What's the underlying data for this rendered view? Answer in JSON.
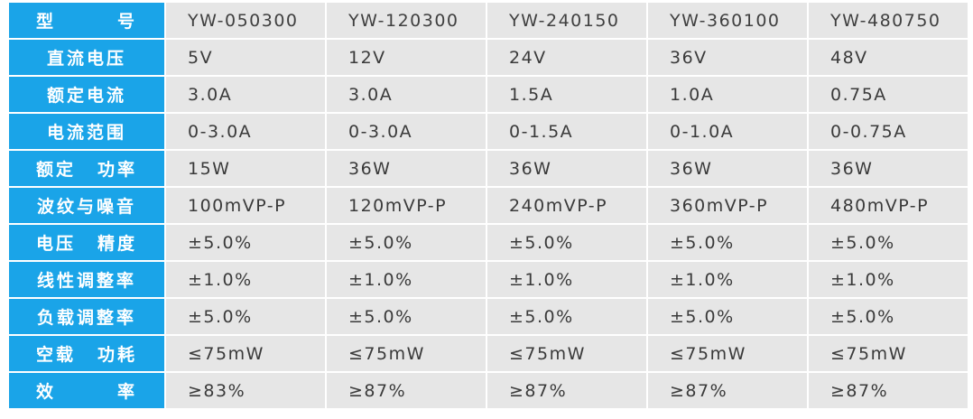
{
  "table": {
    "columns": [
      "YW-050300",
      "YW-120300",
      "YW-240150",
      "YW-360100",
      "YW-480750"
    ],
    "header_label": [
      "型",
      "号"
    ],
    "rows": [
      {
        "label": [
          "直流电压"
        ],
        "values": [
          "5V",
          "12V",
          "24V",
          "36V",
          "48V"
        ]
      },
      {
        "label": [
          "额定电流"
        ],
        "values": [
          "3.0A",
          "3.0A",
          "1.5A",
          "1.0A",
          "0.75A"
        ]
      },
      {
        "label": [
          "电流范围"
        ],
        "values": [
          "0-3.0A",
          "0-3.0A",
          "0-1.5A",
          "0-1.0A",
          "0-0.75A"
        ]
      },
      {
        "label": [
          "额定",
          "功率"
        ],
        "values": [
          "15W",
          "36W",
          "36W",
          "36W",
          "36W"
        ]
      },
      {
        "label": [
          "波纹与噪音"
        ],
        "values": [
          "100mVP-P",
          "120mVP-P",
          "240mVP-P",
          "360mVP-P",
          "480mVP-P"
        ]
      },
      {
        "label": [
          "电压",
          "精度"
        ],
        "values": [
          "±5.0%",
          "±5.0%",
          "±5.0%",
          "±5.0%",
          "±5.0%"
        ]
      },
      {
        "label": [
          "线性调整率"
        ],
        "values": [
          "±1.0%",
          "±1.0%",
          "±1.0%",
          "±1.0%",
          "±1.0%"
        ]
      },
      {
        "label": [
          "负载调整率"
        ],
        "values": [
          "±5.0%",
          "±5.0%",
          "±5.0%",
          "±5.0%",
          "±5.0%"
        ]
      },
      {
        "label": [
          "空载",
          "功耗"
        ],
        "values": [
          "≤75mW",
          "≤75mW",
          "≤75mW",
          "≤75mW",
          "≤75mW"
        ]
      },
      {
        "label": [
          "效",
          "率"
        ],
        "values": [
          "≥83%",
          "≥87%",
          "≥87%",
          "≥87%",
          "≥87%"
        ]
      }
    ]
  },
  "colors": {
    "label_bg": "#1aa4e8",
    "value_bg": "#e6e6e6",
    "value_text": "#3a3a3a"
  }
}
